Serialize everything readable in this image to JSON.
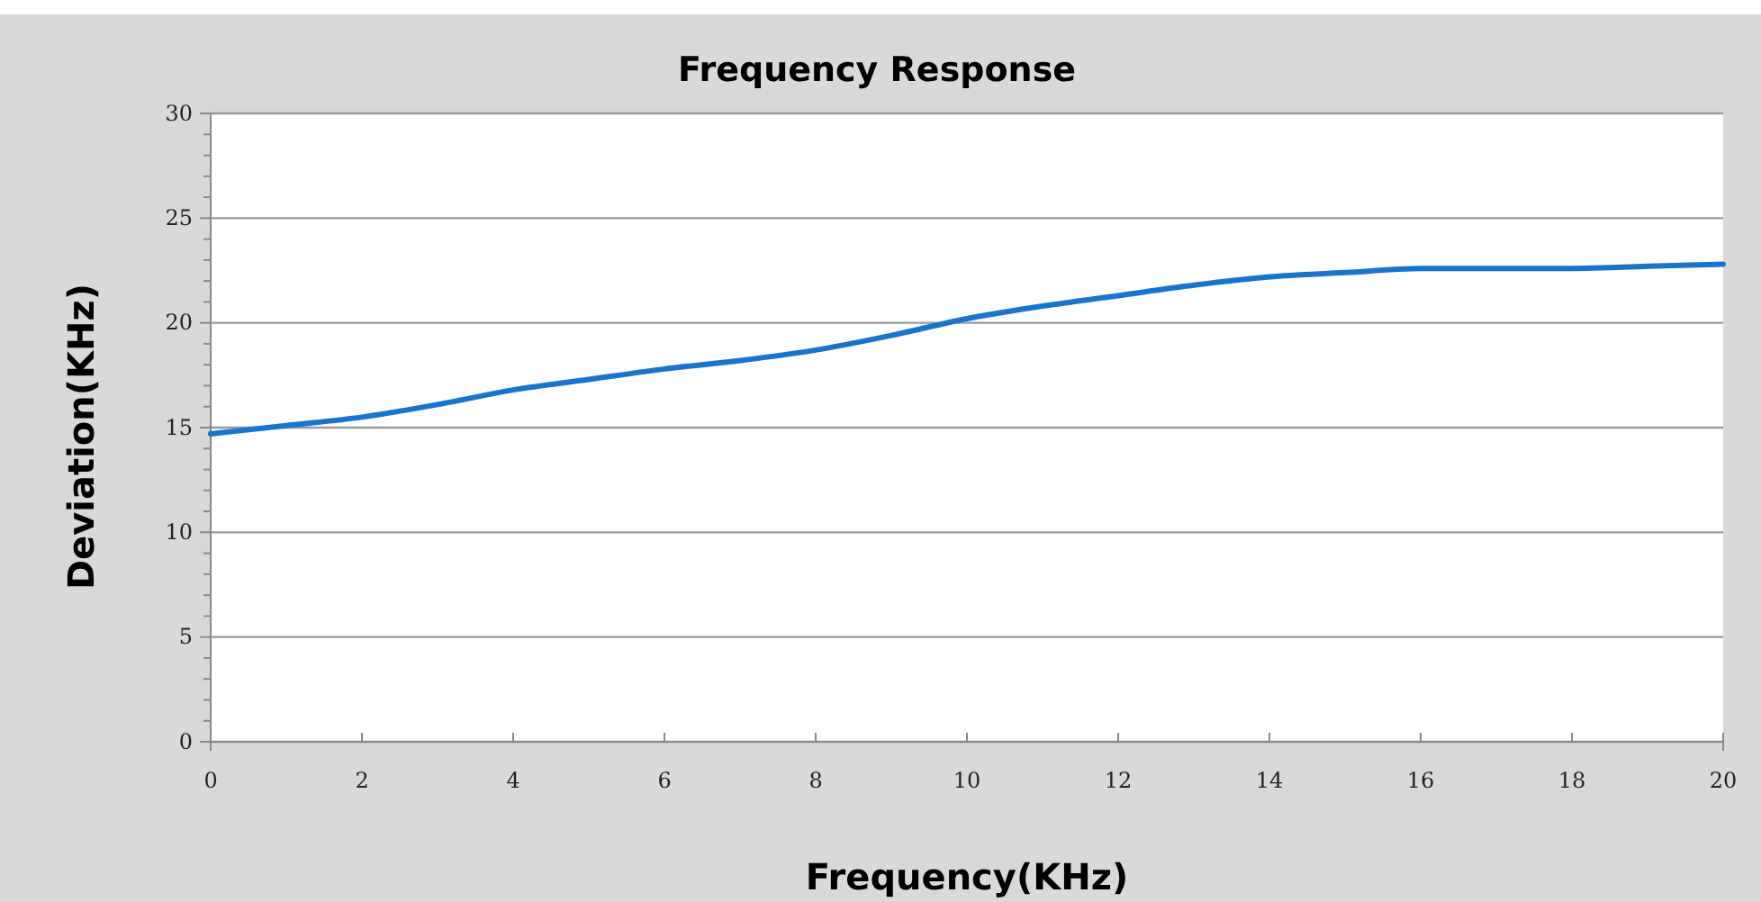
{
  "chart_data": {
    "type": "line",
    "title": "Frequency Response",
    "xlabel": "Frequency(KHz)",
    "ylabel": "Deviation(KHz)",
    "x": [
      0,
      1,
      2,
      3,
      4,
      5,
      6,
      7,
      8,
      9,
      10,
      11,
      12,
      13,
      14,
      15,
      16,
      17,
      18,
      19,
      20
    ],
    "series": [
      {
        "color": "#1874cd",
        "values": [
          14.7,
          15.1,
          15.5,
          16.1,
          16.8,
          17.3,
          17.8,
          18.2,
          18.7,
          19.4,
          20.2,
          20.8,
          21.3,
          21.8,
          22.2,
          22.4,
          22.6,
          22.6,
          22.6,
          22.7,
          22.8
        ]
      }
    ],
    "xlim": [
      0,
      20
    ],
    "xticks": [
      0,
      2,
      4,
      6,
      8,
      10,
      12,
      14,
      16,
      18,
      20
    ],
    "ylim": [
      0,
      30
    ],
    "yticks": [
      0,
      {
        "value": 1,
        "label": null
      },
      {
        "value": 2,
        "label": null
      },
      {
        "value": 3,
        "label": null
      },
      {
        "value": 4,
        "label": null
      },
      5,
      {
        "value": 6,
        "label": null
      },
      {
        "value": 7,
        "label": null
      },
      {
        "value": 8,
        "label": null
      },
      {
        "value": 9,
        "label": null
      },
      10,
      {
        "value": 11,
        "label": null
      },
      {
        "value": 12,
        "label": null
      },
      {
        "value": 13,
        "label": null
      },
      {
        "value": 14,
        "label": null
      },
      15,
      {
        "value": 16,
        "label": null
      },
      {
        "value": 17,
        "label": null
      },
      {
        "value": 18,
        "label": null
      },
      {
        "value": 19,
        "label": null
      },
      20,
      {
        "value": 21,
        "label": null
      },
      {
        "value": 22,
        "label": null
      },
      {
        "value": 23,
        "label": null
      },
      {
        "value": 24,
        "label": null
      },
      25,
      {
        "value": 26,
        "label": null
      },
      {
        "value": 27,
        "label": null
      },
      {
        "value": 28,
        "label": null
      },
      {
        "value": 29,
        "label": null
      },
      30
    ],
    "grid": "y",
    "marker": "none",
    "line_style": "solid"
  }
}
